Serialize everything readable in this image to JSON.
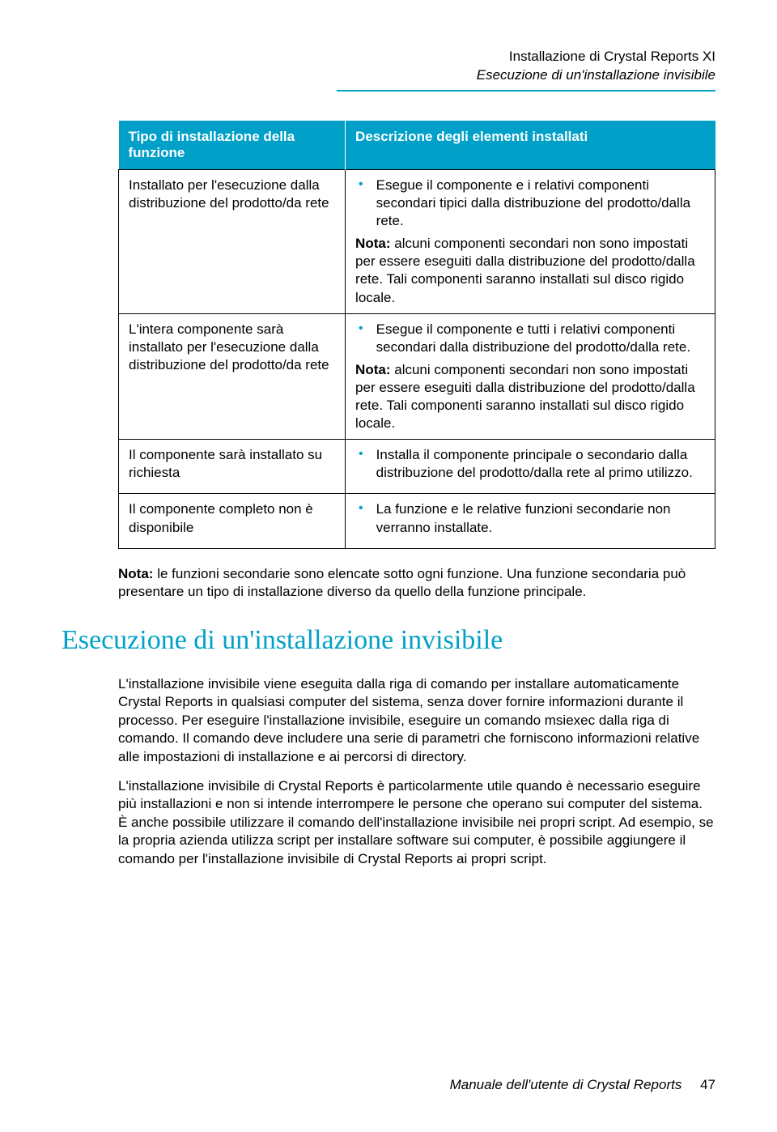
{
  "header": {
    "line1": "Installazione di Crystal Reports XI",
    "line2": "Esecuzione di un'installazione invisibile"
  },
  "table": {
    "header_col1": "Tipo di installazione della funzione",
    "header_col2": "Descrizione degli elementi installati",
    "rows": [
      {
        "left": "Installato per l'esecuzione dalla distribuzione del prodotto/da rete",
        "bullet": "Esegue il componente e i relativi componenti secondari tipici dalla distribuzione del prodotto/dalla rete.",
        "nota": "alcuni componenti secondari non sono impostati per essere eseguiti dalla distribuzione del prodotto/dalla rete. Tali componenti saranno installati sul disco rigido locale."
      },
      {
        "left": "L'intera componente sarà installato per l'esecuzione dalla distribuzione del prodotto/da rete",
        "bullet": "Esegue il componente e tutti i relativi componenti secondari dalla distribuzione del prodotto/dalla rete.",
        "nota": "alcuni componenti secondari non sono impostati per essere eseguiti dalla distribuzione del prodotto/dalla rete. Tali componenti saranno installati sul disco rigido locale."
      },
      {
        "left": "Il componente sarà installato su richiesta",
        "bullet": "Installa il componente principale o secondario dalla distribuzione del prodotto/dalla rete al primo utilizzo.",
        "nota": ""
      },
      {
        "left": "Il componente completo non è disponibile",
        "bullet": "La funzione e le relative funzioni secondarie non verranno installate.",
        "nota": ""
      }
    ]
  },
  "nota_label": "Nota:",
  "note_below": "le funzioni secondarie sono elencate sotto ogni funzione. Una funzione secondaria può presentare un tipo di installazione diverso da quello della funzione principale.",
  "heading": "Esecuzione di un'installazione invisibile",
  "para1": "L'installazione invisibile viene eseguita dalla riga di comando per installare automaticamente Crystal Reports in qualsiasi computer del sistema, senza dover fornire informazioni durante il processo. Per eseguire l'installazione invisibile, eseguire un comando msiexec dalla riga di comando. Il comando deve includere una serie di parametri che forniscono informazioni relative alle impostazioni di installazione e ai percorsi di directory.",
  "para2": "L'installazione invisibile di Crystal Reports è particolarmente utile quando è necessario eseguire più installazioni e non si intende interrompere le persone che operano sui computer del sistema. È anche possibile utilizzare il comando dell'installazione invisibile nei propri script. Ad esempio, se la propria azienda utilizza script per installare software sui computer, è possibile aggiungere il comando per l'installazione invisibile di Crystal Reports ai propri script.",
  "footer": {
    "text": "Manuale dell'utente di Crystal Reports",
    "page": "47"
  },
  "colors": {
    "accent": "#00a0c8",
    "text": "#000000",
    "background": "#ffffff"
  }
}
